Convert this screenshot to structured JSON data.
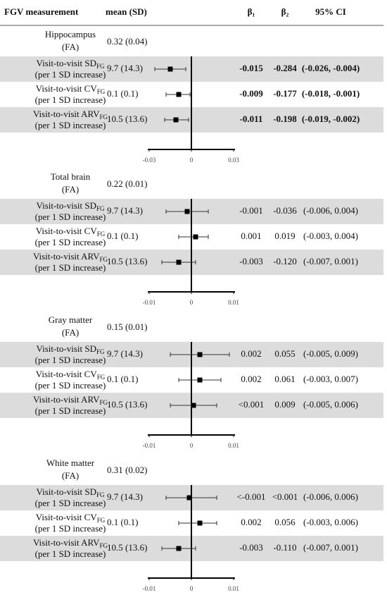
{
  "header": {
    "measurement": "FGV measurement",
    "mean": "mean (SD)",
    "beta1": "β₁",
    "beta2": "β₂",
    "ci": "95% CI"
  },
  "chart_data": [
    {
      "type": "forest",
      "title": "Hippocampus",
      "subtitle": "(FA)",
      "mean": "0.32 (0.04)",
      "bold": true,
      "categories": [
        "Visit-to-visit SD",
        "Visit-to-visit CV",
        "Visit-to-visit ARV"
      ],
      "category_subscripts": [
        "FG",
        "FG",
        "FG"
      ],
      "category_notes": [
        "(per 1 SD increase)",
        "(per 1 SD increase)",
        "(per 1 SD increase)"
      ],
      "means": [
        "9.7 (14.3)",
        "0.1 (0.1)",
        "10.5 (13.6)"
      ],
      "values": [
        -0.015,
        -0.009,
        -0.011
      ],
      "value_labels": [
        "-0.015",
        "-0.009",
        "-0.011"
      ],
      "beta2": [
        "-0.284",
        "-0.177",
        "-0.198"
      ],
      "ci_low": [
        -0.026,
        -0.018,
        -0.019
      ],
      "ci_high": [
        -0.004,
        -0.001,
        -0.002
      ],
      "ci_labels": [
        "(-0.026, -0.004)",
        "(-0.018, -0.001)",
        "(-0.019, -0.002)"
      ],
      "xlim": [
        -0.03,
        0.03
      ],
      "xticks": [
        -0.03,
        0,
        0.03
      ]
    },
    {
      "type": "forest",
      "title": "Total brain",
      "subtitle": "(FA)",
      "mean": "0.22 (0.01)",
      "bold": false,
      "categories": [
        "Visit-to-visit SD",
        "Visit-to-visit CV",
        "Visit-to-visit ARV"
      ],
      "category_subscripts": [
        "FG",
        "FG",
        "FG"
      ],
      "category_notes": [
        "(per 1 SD increase)",
        "(per 1 SD increase)",
        "(per 1 SD increase)"
      ],
      "means": [
        "9.7 (14.3)",
        "0.1 (0.1)",
        "10.5 (13.6)"
      ],
      "values": [
        -0.001,
        0.001,
        -0.003
      ],
      "value_labels": [
        "-0.001",
        "0.001",
        "-0.003"
      ],
      "beta2": [
        "-0.036",
        "0.019",
        "-0.120"
      ],
      "ci_low": [
        -0.006,
        -0.003,
        -0.007
      ],
      "ci_high": [
        0.004,
        0.004,
        0.001
      ],
      "ci_labels": [
        "(-0.006, 0.004)",
        "(-0.003, 0.004)",
        "(-0.007, 0.001)"
      ],
      "xlim": [
        -0.01,
        0.01
      ],
      "xticks": [
        -0.01,
        0,
        0.01
      ]
    },
    {
      "type": "forest",
      "title": "Gray matter",
      "subtitle": "(FA)",
      "mean": "0.15 (0.01)",
      "bold": false,
      "categories": [
        "Visit-to-visit SD",
        "Visit-to-visit CV",
        "Visit-to-visit ARV"
      ],
      "category_subscripts": [
        "FG",
        "FG",
        "FG"
      ],
      "category_notes": [
        "(per 1 SD increase)",
        "(per 1 SD increase)",
        "(per 1 SD increase)"
      ],
      "means": [
        "9.7 (14.3)",
        "0.1 (0.1)",
        "10.5 (13.6)"
      ],
      "values": [
        0.002,
        0.002,
        0.0005
      ],
      "value_labels": [
        "0.002",
        "0.002",
        "<0.001"
      ],
      "beta2": [
        "0.055",
        "0.061",
        "0.009"
      ],
      "ci_low": [
        -0.005,
        -0.003,
        -0.005
      ],
      "ci_high": [
        0.009,
        0.007,
        0.006
      ],
      "ci_labels": [
        "(-0.005, 0.009)",
        "(-0.003, 0.007)",
        "(-0.005, 0.006)"
      ],
      "xlim": [
        -0.01,
        0.01
      ],
      "xticks": [
        -0.01,
        0,
        0.01
      ]
    },
    {
      "type": "forest",
      "title": "White matter",
      "subtitle": "(FA)",
      "mean": "0.31 (0.02)",
      "bold": false,
      "categories": [
        "Visit-to-visit SD",
        "Visit-to-visit CV",
        "Visit-to-visit ARV"
      ],
      "category_subscripts": [
        "FG",
        "FG",
        "FG"
      ],
      "category_notes": [
        "(per 1 SD increase)",
        "(per 1 SD increase)",
        "(per 1 SD increase)"
      ],
      "means": [
        "9.7 (14.3)",
        "0.1 (0.1)",
        "10.5 (13.6)"
      ],
      "values": [
        -0.0005,
        0.002,
        -0.003
      ],
      "value_labels": [
        "<-0.001",
        "0.002",
        "-0.003"
      ],
      "beta2": [
        "<0.001",
        "0.056",
        "-0.110"
      ],
      "ci_low": [
        -0.006,
        -0.003,
        -0.007
      ],
      "ci_high": [
        0.006,
        0.006,
        0.001
      ],
      "ci_labels": [
        "(-0.006, 0.006)",
        "(-0.003, 0.006)",
        "(-0.007, 0.001)"
      ],
      "xlim": [
        -0.01,
        0.01
      ],
      "xticks": [
        -0.01,
        0,
        0.01
      ]
    }
  ]
}
